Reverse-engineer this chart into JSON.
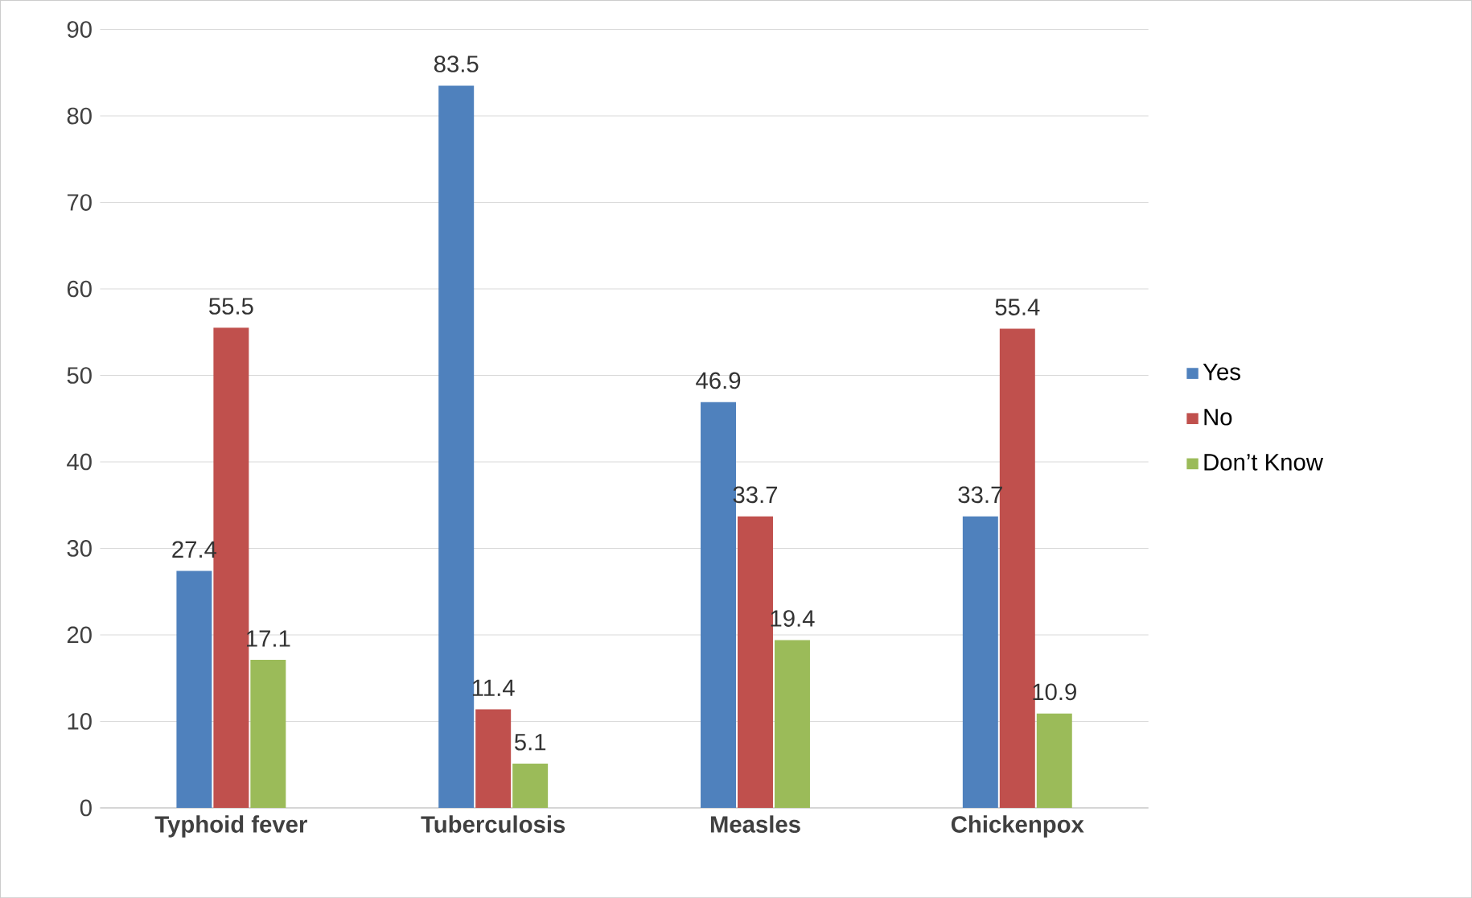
{
  "chart_data": {
    "type": "bar",
    "categories": [
      "Typhoid fever",
      "Tuberculosis",
      "Measles",
      "Chickenpox"
    ],
    "series": [
      {
        "name": "Yes",
        "color": "#4f81bd",
        "values": [
          27.4,
          83.5,
          46.9,
          33.7
        ]
      },
      {
        "name": "No",
        "color": "#c0504d",
        "values": [
          55.5,
          11.4,
          33.7,
          55.4
        ]
      },
      {
        "name": "Don’t Know",
        "color": "#9bbb59",
        "values": [
          17.1,
          5.1,
          19.4,
          10.9
        ]
      }
    ],
    "ylim": [
      0,
      90
    ],
    "yticks": [
      0,
      10,
      20,
      30,
      40,
      50,
      60,
      70,
      80,
      90
    ],
    "grid": "y",
    "legend": "right",
    "data_labels": true
  }
}
